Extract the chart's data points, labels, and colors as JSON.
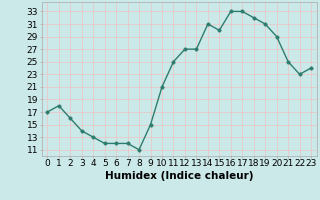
{
  "x": [
    0,
    1,
    2,
    3,
    4,
    5,
    6,
    7,
    8,
    9,
    10,
    11,
    12,
    13,
    14,
    15,
    16,
    17,
    18,
    19,
    20,
    21,
    22,
    23
  ],
  "y": [
    17,
    18,
    16,
    14,
    13,
    12,
    12,
    12,
    11,
    15,
    21,
    25,
    27,
    27,
    31,
    30,
    33,
    33,
    32,
    31,
    29,
    25,
    23,
    24
  ],
  "line_color": "#2d7d6f",
  "marker_color": "#2d7d6f",
  "bg_color": "#cce9e9",
  "grid_color": "#e8c8c8",
  "xlabel": "Humidex (Indice chaleur)",
  "ylabel_ticks": [
    11,
    13,
    15,
    17,
    19,
    21,
    23,
    25,
    27,
    29,
    31,
    33
  ],
  "xlim": [
    -0.5,
    23.5
  ],
  "ylim": [
    10.0,
    34.5
  ],
  "xtick_labels": [
    "0",
    "1",
    "2",
    "3",
    "4",
    "5",
    "6",
    "7",
    "8",
    "9",
    "10",
    "11",
    "12",
    "13",
    "14",
    "15",
    "16",
    "17",
    "18",
    "19",
    "20",
    "21",
    "22",
    "23"
  ],
  "xlabel_fontsize": 7.5,
  "tick_fontsize": 6.5,
  "line_width": 1.0,
  "marker_size": 2.5
}
